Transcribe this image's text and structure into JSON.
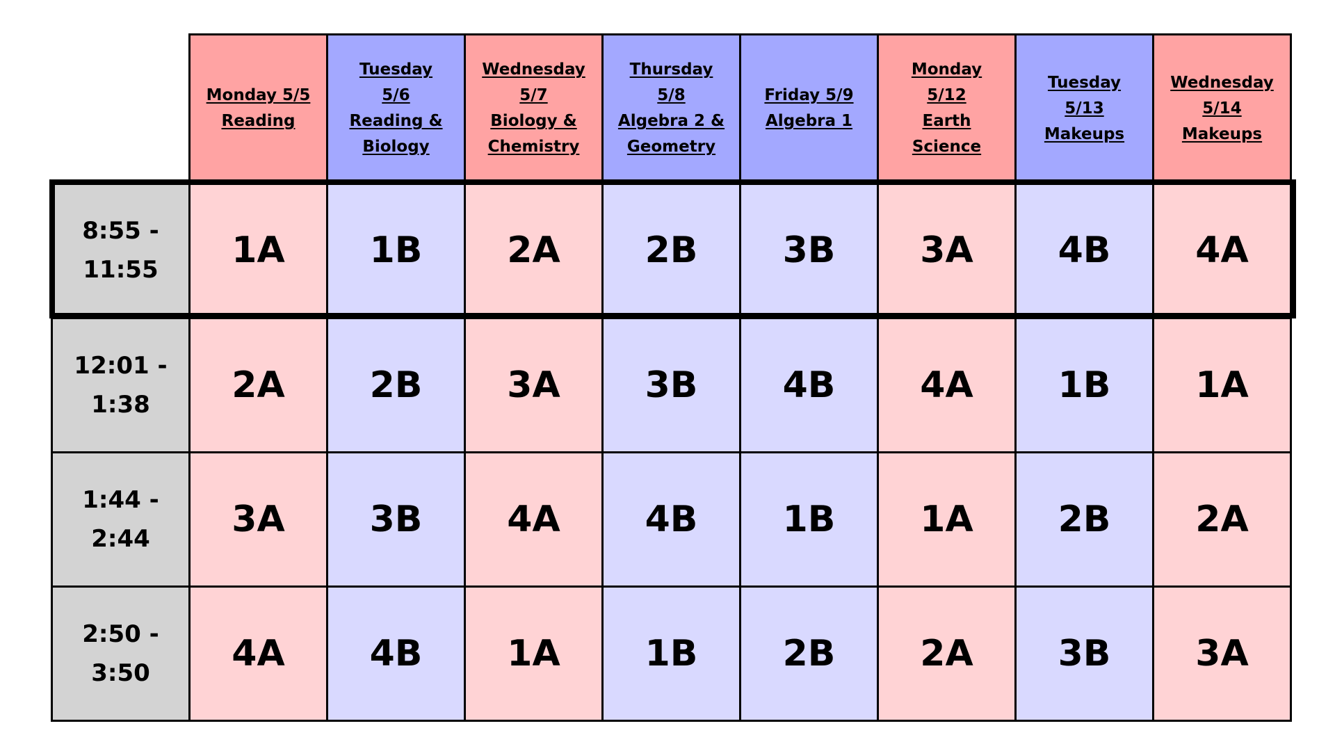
{
  "colors": {
    "header_red": "#ffa3a3",
    "header_blue": "#a3a8ff",
    "cell_red": "#ffd3d5",
    "cell_blue": "#d9d9ff",
    "time_gray": "#d3d3d3",
    "border": "#000000"
  },
  "columns": [
    {
      "lines": [
        "Monday 5/5",
        "Reading"
      ],
      "tone": "red"
    },
    {
      "lines": [
        "Tuesday",
        "5/6",
        "Reading &",
        "Biology"
      ],
      "tone": "blue"
    },
    {
      "lines": [
        "Wednesday",
        "5/7",
        "Biology &",
        "Chemistry"
      ],
      "tone": "red"
    },
    {
      "lines": [
        "Thursday",
        "5/8",
        "Algebra 2 &",
        "Geometry"
      ],
      "tone": "blue"
    },
    {
      "lines": [
        "Friday 5/9",
        "Algebra 1"
      ],
      "tone": "blue"
    },
    {
      "lines": [
        "Monday",
        "5/12",
        "Earth",
        "Science"
      ],
      "tone": "red"
    },
    {
      "lines": [
        "Tuesday",
        "5/13",
        "Makeups"
      ],
      "tone": "blue"
    },
    {
      "lines": [
        "Wednesday",
        "5/14",
        "Makeups"
      ],
      "tone": "red"
    }
  ],
  "rows": [
    {
      "time": [
        "8:55 -",
        "11:55"
      ],
      "highlighted": true,
      "cells": [
        "1A",
        "1B",
        "2A",
        "2B",
        "3B",
        "3A",
        "4B",
        "4A"
      ]
    },
    {
      "time": [
        "12:01 -",
        "1:38"
      ],
      "highlighted": false,
      "cells": [
        "2A",
        "2B",
        "3A",
        "3B",
        "4B",
        "4A",
        "1B",
        "1A"
      ]
    },
    {
      "time": [
        "1:44 -",
        "2:44"
      ],
      "highlighted": false,
      "cells": [
        "3A",
        "3B",
        "4A",
        "4B",
        "1B",
        "1A",
        "2B",
        "2A"
      ]
    },
    {
      "time": [
        "2:50 -",
        "3:50"
      ],
      "highlighted": false,
      "cells": [
        "4A",
        "4B",
        "1A",
        "1B",
        "2B",
        "2A",
        "3B",
        "3A"
      ]
    }
  ]
}
